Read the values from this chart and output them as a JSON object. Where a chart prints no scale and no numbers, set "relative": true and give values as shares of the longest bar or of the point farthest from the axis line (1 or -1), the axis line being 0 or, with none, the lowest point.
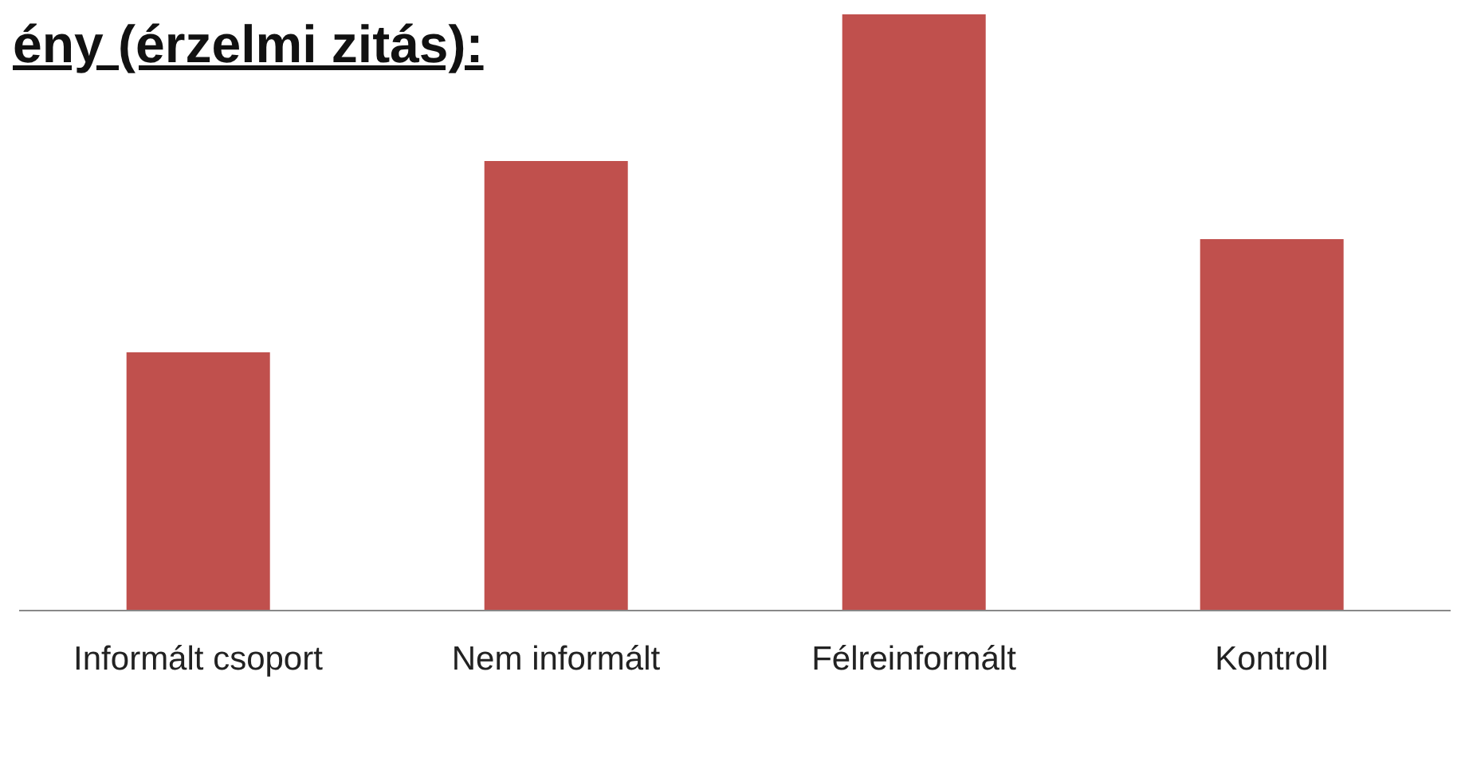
{
  "chart_data": {
    "type": "bar",
    "title": "ény (érzelmi zitás):",
    "relative": true,
    "categories": [
      "Informált csoport",
      "Nem informált",
      "Félreinformált",
      "Kontroll"
    ],
    "values": [
      0.433,
      0.754,
      1,
      0.623
    ],
    "color": "#c0504d",
    "grid": false
  }
}
